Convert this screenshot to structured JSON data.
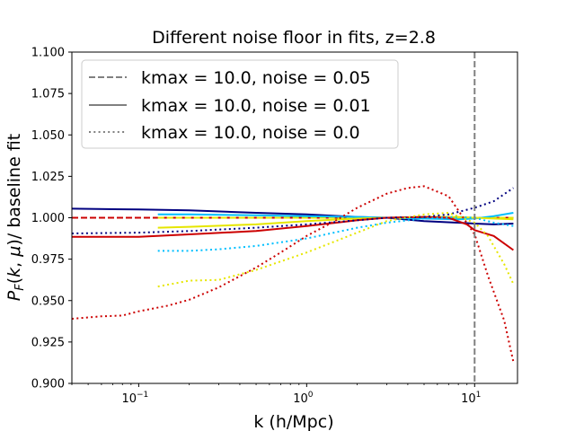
{
  "chart_data": {
    "type": "line",
    "title": "Different noise floor in fits, z=2.8",
    "xlabel": "k (h/Mpc)",
    "ylabel": "P_F(k, μ)/ baseline fit",
    "xscale": "log",
    "xlim": [
      0.04,
      18
    ],
    "ylim": [
      0.9,
      1.1
    ],
    "yticks": [
      "0.900",
      "0.925",
      "0.950",
      "0.975",
      "1.000",
      "1.025",
      "1.050",
      "1.075",
      "1.100"
    ],
    "yticks_values": [
      0.9,
      0.925,
      0.95,
      0.975,
      1.0,
      1.025,
      1.05,
      1.075,
      1.1
    ],
    "xticks": [
      {
        "value": 0.1,
        "base": "10",
        "exp": "−1"
      },
      {
        "value": 1,
        "base": "10",
        "exp": "0"
      },
      {
        "value": 10,
        "base": "10",
        "exp": "1"
      }
    ],
    "vline": {
      "x": 10,
      "color": "#808080",
      "style": "dashed"
    },
    "legend": {
      "location": "upper-left",
      "entries": [
        {
          "label": "kmax = 10.0, noise = 0.05",
          "style": "dashed",
          "color": "#808080"
        },
        {
          "label": "kmax = 10.0, noise = 0.01",
          "style": "solid",
          "color": "#808080"
        },
        {
          "label": "kmax = 10.0, noise = 0.0",
          "style": "dotted",
          "color": "#808080"
        }
      ]
    },
    "series": [
      {
        "name": "navy noise 0.05",
        "color": "#000080",
        "style": "dashed",
        "x": [
          0.04,
          0.1,
          0.3,
          1,
          3,
          10,
          17
        ],
        "y": [
          1.0,
          1.0,
          1.0,
          1.0,
          1.0,
          1.0,
          1.0
        ]
      },
      {
        "name": "red noise 0.05",
        "color": "#cc0000",
        "style": "dashed",
        "x": [
          0.04,
          0.1,
          0.3,
          1,
          3,
          10,
          17
        ],
        "y": [
          1.0,
          1.0,
          1.0,
          1.0,
          1.0,
          1.0,
          1.0
        ]
      },
      {
        "name": "yellow noise 0.05",
        "color": "#e6e600",
        "style": "dashed",
        "x": [
          0.13,
          0.3,
          1,
          3,
          10,
          17
        ],
        "y": [
          1.0,
          1.0,
          1.0,
          1.0,
          1.0,
          1.0
        ]
      },
      {
        "name": "navy noise 0.01",
        "color": "#000080",
        "style": "solid",
        "x": [
          0.04,
          0.1,
          0.2,
          0.5,
          1,
          2,
          3,
          5,
          8,
          10,
          13,
          17
        ],
        "y": [
          1.0055,
          1.005,
          1.0045,
          1.003,
          1.002,
          1.0005,
          1.0,
          0.998,
          0.997,
          0.9965,
          0.996,
          0.9965
        ]
      },
      {
        "name": "cyan noise 0.01",
        "color": "#00bfff",
        "style": "solid",
        "x": [
          0.13,
          0.2,
          0.5,
          1,
          2,
          3,
          5,
          8,
          10,
          13,
          17
        ],
        "y": [
          1.002,
          1.002,
          1.0015,
          1.001,
          1.0005,
          1.0,
          0.9995,
          0.999,
          0.9995,
          1.001,
          1.003
        ]
      },
      {
        "name": "yellow noise 0.01",
        "color": "#e6e600",
        "style": "solid",
        "x": [
          0.13,
          0.2,
          0.5,
          1,
          2,
          3,
          5,
          8,
          10,
          13,
          17
        ],
        "y": [
          0.994,
          0.9945,
          0.996,
          0.998,
          0.9995,
          1.0,
          1.0005,
          1.0005,
          1.0,
          0.9995,
          0.999
        ]
      },
      {
        "name": "red noise 0.01",
        "color": "#cc0000",
        "style": "solid",
        "x": [
          0.04,
          0.1,
          0.2,
          0.5,
          1,
          2,
          3,
          5,
          7,
          9,
          10,
          13,
          17
        ],
        "y": [
          0.9885,
          0.9885,
          0.99,
          0.992,
          0.995,
          0.9985,
          1.0,
          1.0005,
          1.0,
          0.996,
          0.9925,
          0.989,
          0.9805
        ]
      },
      {
        "name": "navy noise 0.0",
        "color": "#000080",
        "style": "dotted",
        "x": [
          0.04,
          0.1,
          0.2,
          0.5,
          1,
          2,
          3,
          5,
          7,
          10,
          13,
          17
        ],
        "y": [
          0.9905,
          0.991,
          0.992,
          0.994,
          0.996,
          0.9985,
          1.0,
          1.0005,
          1.002,
          1.006,
          1.01,
          1.018
        ]
      },
      {
        "name": "cyan noise 0.0",
        "color": "#00bfff",
        "style": "dotted",
        "x": [
          0.13,
          0.2,
          0.3,
          0.5,
          1,
          2,
          3,
          5,
          8,
          10,
          13,
          17
        ],
        "y": [
          0.98,
          0.98,
          0.981,
          0.983,
          0.9875,
          0.994,
          0.997,
          0.9995,
          1.0005,
          1.0,
          0.997,
          0.995
        ]
      },
      {
        "name": "yellow noise 0.0",
        "color": "#e6e600",
        "style": "dotted",
        "x": [
          0.13,
          0.2,
          0.3,
          0.5,
          1,
          2,
          3,
          5,
          7,
          10,
          12,
          15,
          17
        ],
        "y": [
          0.9585,
          0.962,
          0.9625,
          0.9685,
          0.979,
          0.991,
          0.998,
          1.002,
          1.003,
          0.997,
          0.989,
          0.972,
          0.96
        ]
      },
      {
        "name": "red noise 0.0",
        "color": "#cc0000",
        "style": "dotted",
        "x": [
          0.04,
          0.06,
          0.08,
          0.1,
          0.15,
          0.2,
          0.3,
          0.5,
          0.7,
          1,
          1.5,
          2,
          3,
          4,
          5,
          7,
          10,
          12,
          15,
          17
        ],
        "y": [
          0.939,
          0.9405,
          0.941,
          0.9435,
          0.947,
          0.9505,
          0.958,
          0.97,
          0.979,
          0.989,
          0.9985,
          1.006,
          1.0145,
          1.018,
          1.019,
          1.013,
          0.99,
          0.965,
          0.938,
          0.913
        ]
      }
    ]
  }
}
